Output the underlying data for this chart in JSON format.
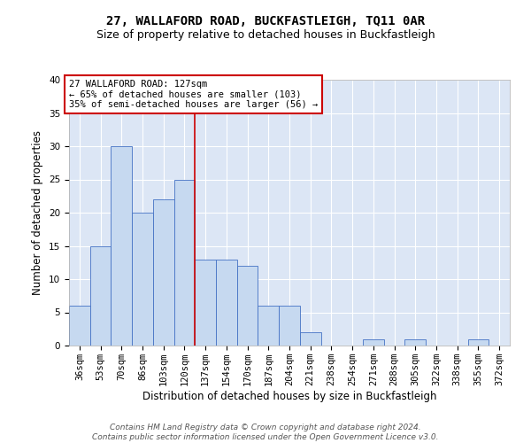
{
  "title": "27, WALLAFORD ROAD, BUCKFASTLEIGH, TQ11 0AR",
  "subtitle": "Size of property relative to detached houses in Buckfastleigh",
  "xlabel": "Distribution of detached houses by size in Buckfastleigh",
  "ylabel": "Number of detached properties",
  "categories": [
    "36sqm",
    "53sqm",
    "70sqm",
    "86sqm",
    "103sqm",
    "120sqm",
    "137sqm",
    "154sqm",
    "170sqm",
    "187sqm",
    "204sqm",
    "221sqm",
    "238sqm",
    "254sqm",
    "271sqm",
    "288sqm",
    "305sqm",
    "322sqm",
    "338sqm",
    "355sqm",
    "372sqm"
  ],
  "values": [
    6,
    15,
    30,
    20,
    22,
    25,
    13,
    13,
    12,
    6,
    6,
    2,
    0,
    0,
    1,
    0,
    1,
    0,
    0,
    1,
    0
  ],
  "bar_color": "#c6d9f0",
  "bar_edge_color": "#4472c4",
  "vline_x": 5.5,
  "vline_color": "#cc0000",
  "annotation_line1": "27 WALLAFORD ROAD: 127sqm",
  "annotation_line2": "← 65% of detached houses are smaller (103)",
  "annotation_line3": "35% of semi-detached houses are larger (56) →",
  "annotation_box_color": "#cc0000",
  "ylim": [
    0,
    40
  ],
  "yticks": [
    0,
    5,
    10,
    15,
    20,
    25,
    30,
    35,
    40
  ],
  "bg_color": "#dce6f5",
  "footer": "Contains HM Land Registry data © Crown copyright and database right 2024.\nContains public sector information licensed under the Open Government Licence v3.0.",
  "title_fontsize": 10,
  "subtitle_fontsize": 9,
  "xlabel_fontsize": 8.5,
  "ylabel_fontsize": 8.5,
  "tick_fontsize": 7.5,
  "footer_fontsize": 6.5,
  "annotation_fontsize": 7.5
}
